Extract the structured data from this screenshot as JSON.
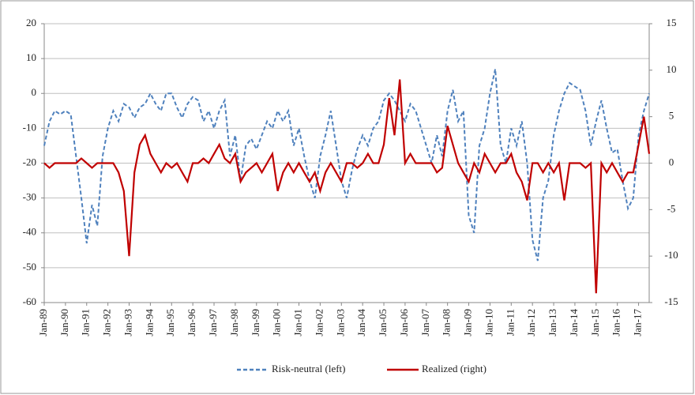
{
  "chart_data": {
    "type": "line",
    "categories": [
      "Jan-89",
      null,
      null,
      null,
      "Jan-90",
      null,
      null,
      null,
      "Jan-91",
      null,
      null,
      null,
      "Jan-92",
      null,
      null,
      null,
      "Jan-93",
      null,
      null,
      null,
      "Jan-94",
      null,
      null,
      null,
      "Jan-95",
      null,
      null,
      null,
      "Jan-96",
      null,
      null,
      null,
      "Jan-97",
      null,
      null,
      null,
      "Jan-98",
      null,
      null,
      null,
      "Jan-99",
      null,
      null,
      null,
      "Jan-00",
      null,
      null,
      null,
      "Jan-01",
      null,
      null,
      null,
      "Jan-02",
      null,
      null,
      null,
      "Jan-03",
      null,
      null,
      null,
      "Jan-04",
      null,
      null,
      null,
      "Jan-05",
      null,
      null,
      null,
      "Jan-06",
      null,
      null,
      null,
      "Jan-07",
      null,
      null,
      null,
      "Jan-08",
      null,
      null,
      null,
      "Jan-09",
      null,
      null,
      null,
      "Jan-10",
      null,
      null,
      null,
      "Jan-11",
      null,
      null,
      null,
      "Jan-12",
      null,
      null,
      null,
      "Jan-13",
      null,
      null,
      null,
      "Jan-14",
      null,
      null,
      null,
      "Jan-15",
      null,
      null,
      null,
      "Jan-16",
      null,
      null,
      null,
      "Jan-17",
      null,
      null
    ],
    "series": [
      {
        "name": "Risk-neutral (left)",
        "color": "#4f81bd",
        "dash": true,
        "axis": "y",
        "values": [
          -15,
          -8,
          -5,
          -6,
          -5,
          -6,
          -18,
          -30,
          -43,
          -32,
          -38,
          -18,
          -10,
          -5,
          -8,
          -3,
          -4,
          -7,
          -4,
          -3,
          0,
          -3,
          -5,
          0,
          0,
          -4,
          -7,
          -3,
          -1,
          -2,
          -8,
          -5,
          -10,
          -5,
          -2,
          -18,
          -12,
          -25,
          -15,
          -13,
          -16,
          -12,
          -8,
          -10,
          -5,
          -8,
          -5,
          -15,
          -10,
          -18,
          -25,
          -30,
          -18,
          -12,
          -5,
          -15,
          -25,
          -30,
          -22,
          -16,
          -12,
          -15,
          -10,
          -8,
          -2,
          0,
          -2,
          -5,
          -8,
          -3,
          -5,
          -10,
          -15,
          -20,
          -12,
          -18,
          -5,
          1,
          -8,
          -5,
          -35,
          -40,
          -15,
          -10,
          0,
          7,
          -15,
          -20,
          -10,
          -15,
          -8,
          -20,
          -42,
          -48,
          -30,
          -25,
          -12,
          -5,
          0,
          3,
          2,
          1,
          -5,
          -15,
          -8,
          -2,
          -10,
          -17,
          -16,
          -25,
          -33,
          -30,
          -12,
          -5,
          0
        ]
      },
      {
        "name": "Realized (right)",
        "color": "#c00000",
        "dash": false,
        "axis": "y2",
        "values": [
          0,
          -0.5,
          0,
          0,
          0,
          0,
          0,
          0.5,
          0,
          -0.5,
          0,
          0,
          0,
          0,
          -1,
          -3,
          -10,
          -1,
          2,
          3,
          1,
          0,
          -1,
          0,
          -0.5,
          0,
          -1,
          -2,
          0,
          0,
          0.5,
          0,
          1,
          2,
          0.5,
          0,
          1,
          -2,
          -1,
          -0.5,
          0,
          -1,
          0,
          1,
          -3,
          -1,
          0,
          -1,
          0,
          -1,
          -2,
          -1,
          -3,
          -1,
          0,
          -1,
          -2,
          0,
          0,
          -0.5,
          0,
          1,
          0,
          0,
          2,
          7,
          3,
          9,
          0,
          1,
          0,
          0,
          0,
          0,
          -1,
          -0.5,
          4,
          2,
          0,
          -1,
          -2,
          0,
          -1,
          1,
          0,
          -1,
          0,
          0,
          1,
          -1,
          -2,
          -4,
          0,
          0,
          -1,
          0,
          -1,
          0,
          -4,
          0,
          0,
          0,
          -0.5,
          0,
          -14,
          0,
          -1,
          0,
          -1,
          -2,
          -1,
          -1,
          2,
          5,
          1
        ]
      }
    ],
    "ylim": [
      -60,
      20
    ],
    "yticks": [
      -60,
      -50,
      -40,
      -30,
      -20,
      -10,
      0,
      10,
      20
    ],
    "y2lim": [
      -15,
      15
    ],
    "y2ticks": [
      -15,
      -10,
      -5,
      0,
      5,
      10,
      15
    ],
    "grid": true,
    "legend": "bottom"
  }
}
